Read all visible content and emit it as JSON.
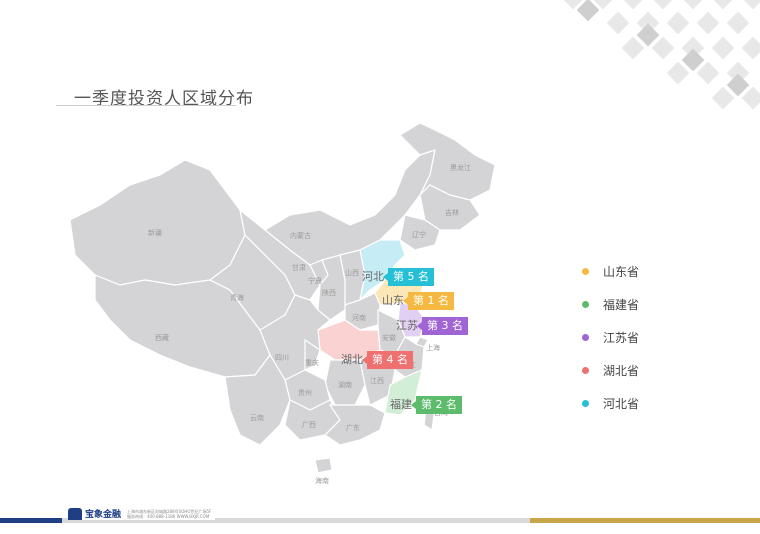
{
  "slide": {
    "title": "一季度投资人区域分布"
  },
  "map": {
    "base_color": "#d4d4d6",
    "border_color": "#ffffff",
    "region_labels": [
      "新疆",
      "西藏",
      "青海",
      "甘肃",
      "内蒙古",
      "黑龙江",
      "吉林",
      "辽宁",
      "四川",
      "云南",
      "广西",
      "广东",
      "湖南",
      "贵州",
      "江西",
      "浙江",
      "台湾",
      "海南",
      "安徽",
      "河南",
      "陕西",
      "山西",
      "宁夏",
      "上海",
      "重庆"
    ]
  },
  "callouts": [
    {
      "province": "河北",
      "rank": "第 5 名",
      "color": "#25c0d6",
      "highlight": "#c6edf5"
    },
    {
      "province": "山东",
      "rank": "第 1 名",
      "color": "#f5b942",
      "highlight": "#fbe7b8"
    },
    {
      "province": "江苏",
      "rank": "第 3 名",
      "color": "#a064d4",
      "highlight": "#e2cff4"
    },
    {
      "province": "湖北",
      "rank": "第 4 名",
      "color": "#f07070",
      "highlight": "#fad2d2"
    },
    {
      "province": "福建",
      "rank": "第 2 名",
      "color": "#5cbc6c",
      "highlight": "#d3eed7"
    }
  ],
  "legend": [
    {
      "label": "山东省",
      "color": "#f5b942"
    },
    {
      "label": "福建省",
      "color": "#5cbc6c"
    },
    {
      "label": "江苏省",
      "color": "#a064d4"
    },
    {
      "label": "湖北省",
      "color": "#f07070"
    },
    {
      "label": "河北省",
      "color": "#25c0d6"
    }
  ],
  "footer": {
    "logo_text": "宝象金融",
    "line1": "上海市浦东新区向城路288号SOHO世纪广场5F",
    "line2": "服务热线：400-888-1186   WWW.BXJR.COM"
  }
}
